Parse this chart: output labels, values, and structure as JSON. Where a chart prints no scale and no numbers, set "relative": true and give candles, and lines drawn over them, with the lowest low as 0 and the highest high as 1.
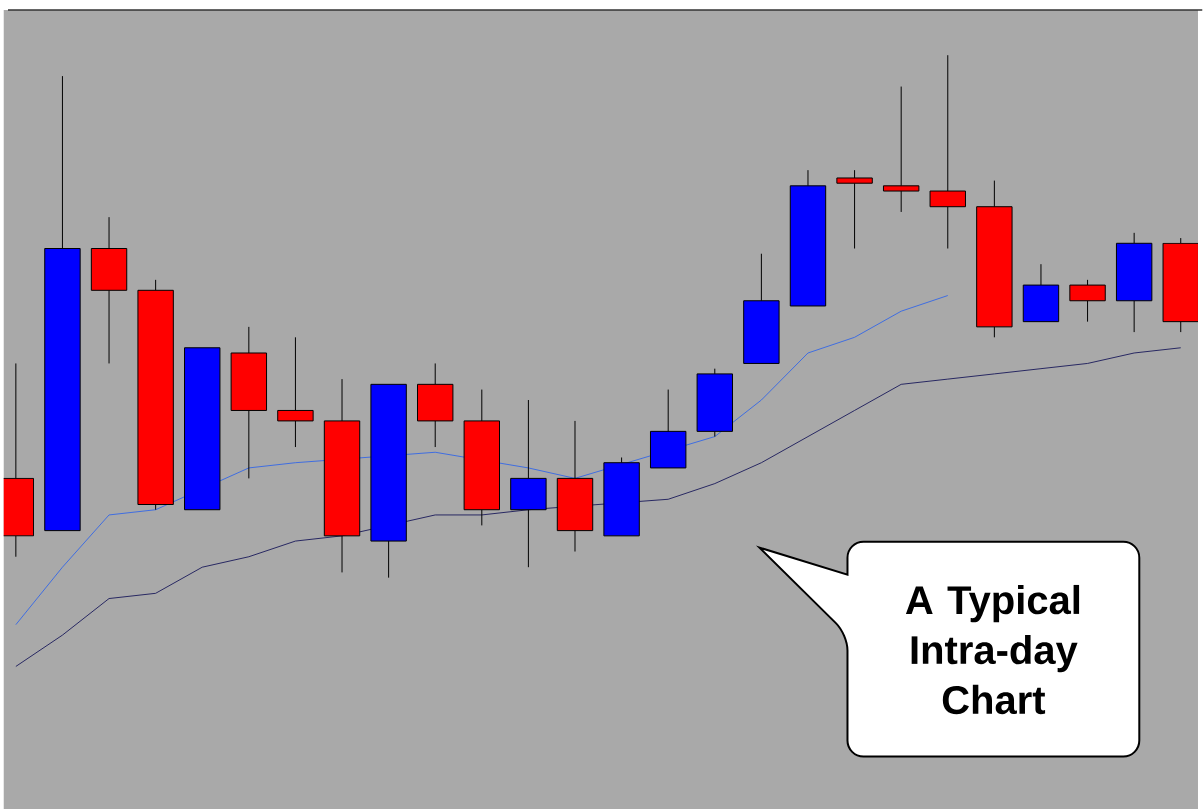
{
  "chart_data": {
    "type": "candlestick",
    "relative": true,
    "categories": [
      null,
      null,
      null,
      null,
      null,
      null,
      null,
      null,
      null,
      null,
      null,
      null,
      null,
      null,
      null,
      null,
      null,
      null,
      null,
      null,
      null,
      null,
      null,
      null,
      null,
      null
    ],
    "ohlc": [
      [
        0.19,
        0.41,
        0.04,
        0.08
      ],
      [
        0.09,
        0.96,
        0.09,
        0.63
      ],
      [
        0.63,
        0.69,
        0.41,
        0.55
      ],
      [
        0.55,
        0.57,
        0.13,
        0.14
      ],
      [
        0.13,
        0.44,
        0.13,
        0.44
      ],
      [
        0.43,
        0.48,
        0.19,
        0.32
      ],
      [
        0.32,
        0.46,
        0.25,
        0.3
      ],
      [
        0.3,
        0.38,
        0.01,
        0.08
      ],
      [
        0.07,
        0.37,
        0.0,
        0.37
      ],
      [
        0.37,
        0.41,
        0.25,
        0.3
      ],
      [
        0.3,
        0.36,
        0.1,
        0.13
      ],
      [
        0.13,
        0.34,
        0.02,
        0.19
      ],
      [
        0.19,
        0.3,
        0.05,
        0.09
      ],
      [
        0.08,
        0.23,
        0.08,
        0.22
      ],
      [
        0.21,
        0.36,
        0.21,
        0.28
      ],
      [
        0.28,
        0.4,
        0.27,
        0.39
      ],
      [
        0.41,
        0.62,
        0.41,
        0.53
      ],
      [
        0.52,
        0.78,
        0.52,
        0.75
      ],
      [
        0.765,
        0.78,
        0.63,
        0.755
      ],
      [
        0.75,
        0.94,
        0.7,
        0.74
      ],
      [
        0.74,
        1.0,
        0.63,
        0.71
      ],
      [
        0.71,
        0.76,
        0.46,
        0.48
      ],
      [
        0.49,
        0.6,
        0.49,
        0.56
      ],
      [
        0.56,
        0.57,
        0.49,
        0.53
      ],
      [
        0.53,
        0.66,
        0.47,
        0.64
      ],
      [
        0.64,
        0.65,
        0.47,
        0.49
      ]
    ],
    "colors": [
      "#ff0000",
      "#0000ff",
      "#ff0000",
      "#ff0000",
      "#0000ff",
      "#ff0000",
      "#ff0000",
      "#ff0000",
      "#0000ff",
      "#ff0000",
      "#ff0000",
      "#0000ff",
      "#ff0000",
      "#0000ff",
      "#0000ff",
      "#0000ff",
      "#0000ff",
      "#0000ff",
      "#ff0000",
      "#ff0000",
      "#ff0000",
      "#ff0000",
      "#0000ff",
      "#ff0000",
      "#0000ff",
      "#ff0000"
    ],
    "series": [
      {
        "type": "line",
        "color": "#3366e6",
        "values": [
          -0.09,
          0.02,
          0.12,
          0.13,
          null,
          0.21,
          0.22,
          null,
          null,
          0.24,
          null,
          0.21,
          0.19,
          null,
          null,
          0.27,
          0.34,
          0.43,
          0.46,
          0.51,
          0.54,
          null,
          null,
          null,
          null,
          null
        ]
      },
      {
        "type": "line",
        "color": "#1a1a5a",
        "values": [
          -0.17,
          -0.11,
          -0.04,
          -0.03,
          0.02,
          0.04,
          0.07,
          0.08,
          null,
          0.12,
          0.12,
          0.13,
          null,
          null,
          0.15,
          0.18,
          0.22,
          0.27,
          0.32,
          0.37,
          0.38,
          0.39,
          0.4,
          0.41,
          0.43,
          0.44
        ]
      }
    ],
    "annotations": [
      "A Typical Intra-day Chart"
    ]
  }
}
